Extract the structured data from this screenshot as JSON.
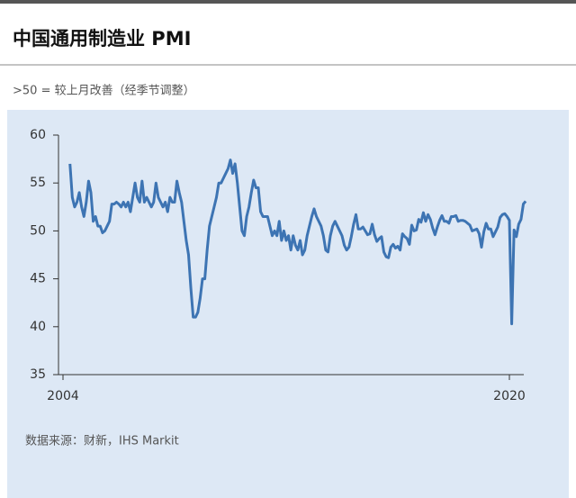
{
  "chart_data": {
    "type": "line",
    "title": "中国通用制造业 PMI",
    "subtitle": ">50 = 较上月改善（经季节调整）",
    "source": "数据来源：财新，IHS Markit",
    "categories": [
      "2004",
      null,
      null,
      null,
      null,
      null,
      null,
      null,
      null,
      null,
      null,
      null,
      null,
      null,
      null,
      null,
      null,
      null,
      null,
      null,
      null,
      null,
      null,
      null,
      null,
      null,
      null,
      null,
      null,
      null,
      null,
      null,
      null,
      null,
      null,
      null,
      null,
      null,
      null,
      null,
      null,
      null,
      null,
      null,
      null,
      null,
      null,
      null,
      null,
      null,
      null,
      null,
      null,
      null,
      null,
      null,
      null,
      null,
      null,
      null,
      null,
      null,
      null,
      null,
      null,
      null,
      null,
      null,
      null,
      null,
      null,
      null,
      null,
      null,
      null,
      null,
      null,
      null,
      null,
      null,
      null,
      null,
      null,
      null,
      null,
      null,
      null,
      null,
      null,
      null,
      null,
      null,
      null,
      null,
      null,
      null,
      null,
      null,
      null,
      null,
      null,
      null,
      null,
      null,
      null,
      null,
      null,
      null,
      null,
      null,
      null,
      null,
      null,
      null,
      null,
      null,
      null,
      null,
      null,
      null,
      null,
      null,
      null,
      null,
      null,
      null,
      null,
      null,
      null,
      null,
      null,
      null,
      null,
      null,
      null,
      null,
      null,
      null,
      null,
      null,
      null,
      null,
      null,
      null,
      null,
      null,
      null,
      null,
      null,
      null,
      null,
      null,
      null,
      null,
      null,
      null,
      null,
      null,
      null,
      null,
      null,
      null,
      null,
      null,
      null,
      null,
      null,
      null,
      null,
      null,
      null,
      null,
      null,
      null,
      null,
      null,
      null,
      null,
      null,
      null,
      null,
      null,
      null,
      null,
      null,
      null,
      null,
      null,
      null,
      null,
      null,
      null,
      "2020",
      null,
      null,
      null,
      null,
      null,
      null,
      null
    ],
    "series": [
      {
        "name": "PMI",
        "color": "#3d74b3",
        "values": [
          null,
          null,
          null,
          57.0,
          53.5,
          52.5,
          53.0,
          54.0,
          52.5,
          51.5,
          53.0,
          55.2,
          54.0,
          51.0,
          51.5,
          50.5,
          50.5,
          49.8,
          50.0,
          50.5,
          51.0,
          52.8,
          52.8,
          53.0,
          52.8,
          52.5,
          53.0,
          52.5,
          53.0,
          52.0,
          53.5,
          55.0,
          53.5,
          53.0,
          55.2,
          53.0,
          53.5,
          53.0,
          52.5,
          53.0,
          55.0,
          53.5,
          53.0,
          52.5,
          53.0,
          52.0,
          53.5,
          53.0,
          53.0,
          55.2,
          54.0,
          53.0,
          51.0,
          49.0,
          47.5,
          44.0,
          41.0,
          41.0,
          41.5,
          43.0,
          45.0,
          45.0,
          48.0,
          50.5,
          51.5,
          52.5,
          53.5,
          55.0,
          55.0,
          55.5,
          56.0,
          56.5,
          57.4,
          56.0,
          57.0,
          55.0,
          52.5,
          50.0,
          49.5,
          51.5,
          52.5,
          54.0,
          55.3,
          54.5,
          54.5,
          52.0,
          51.5,
          51.5,
          51.5,
          50.5,
          49.5,
          50.0,
          49.5,
          51.0,
          49.0,
          50.0,
          49.0,
          49.5,
          48.0,
          49.5,
          48.5,
          48.0,
          49.0,
          47.5,
          48.0,
          49.5,
          50.5,
          51.5,
          52.3,
          51.5,
          51.0,
          50.5,
          49.5,
          48.0,
          47.8,
          49.5,
          50.5,
          51.0,
          50.5,
          50.0,
          49.5,
          48.5,
          48.0,
          48.3,
          49.4,
          50.7,
          51.7,
          50.2,
          50.2,
          50.4,
          50.0,
          49.6,
          49.7,
          50.7,
          49.6,
          48.9,
          49.2,
          49.4,
          47.8,
          47.3,
          47.2,
          48.3,
          48.6,
          48.2,
          48.4,
          48.0,
          49.7,
          49.4,
          49.2,
          48.6,
          50.6,
          50.0,
          50.1,
          51.2,
          50.9,
          51.9,
          51.0,
          51.7,
          51.2,
          50.3,
          49.6,
          50.4,
          51.1,
          51.6,
          51.0,
          51.0,
          50.8,
          51.5,
          51.5,
          51.6,
          51.0,
          51.1,
          51.1,
          51.0,
          50.8,
          50.6,
          50.0,
          50.1,
          50.2,
          49.7,
          48.3,
          49.9,
          50.8,
          50.2,
          50.2,
          49.4,
          49.9,
          50.4,
          51.4,
          51.7,
          51.8,
          51.5,
          51.1,
          40.3,
          50.1,
          49.4,
          50.7,
          51.2,
          52.8,
          53.1
        ]
      }
    ],
    "ylim": [
      35,
      60
    ],
    "yticks": [
      35,
      40,
      45,
      50,
      55,
      60
    ],
    "grid": false
  }
}
